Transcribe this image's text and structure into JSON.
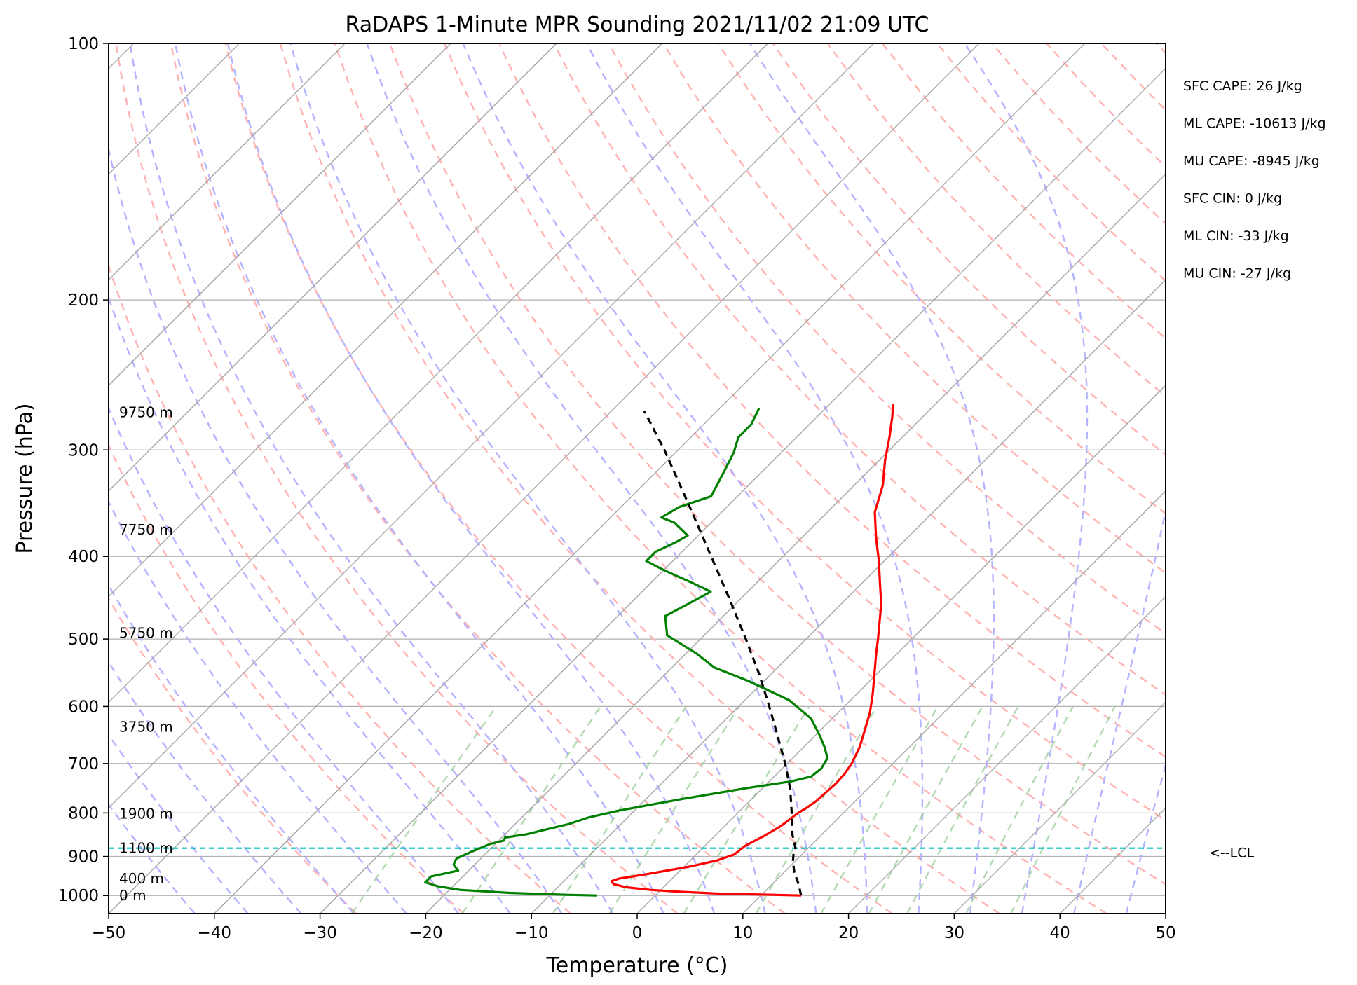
{
  "chart_data": {
    "type": "line",
    "title": "RaDAPS 1-Minute MPR Sounding 2021/11/02 21:09 UTC",
    "xlabel": "Temperature (°C)",
    "ylabel": "Pressure (hPa)",
    "xlim": [
      -50,
      50
    ],
    "ylim": [
      1050,
      100
    ],
    "y_scale": "log",
    "skew": "skew-T",
    "grid": true,
    "x_ticks": [
      -50,
      -40,
      -30,
      -20,
      -10,
      0,
      10,
      20,
      30,
      40,
      50
    ],
    "x_tick_labels": [
      "−50",
      "−40",
      "−30",
      "−20",
      "−10",
      "0",
      "10",
      "20",
      "30",
      "40",
      "50"
    ],
    "y_ticks": [
      100,
      200,
      300,
      400,
      500,
      600,
      700,
      800,
      900,
      1000
    ],
    "y_tick_labels": [
      "100",
      "200",
      "300",
      "400",
      "500",
      "600",
      "700",
      "800",
      "900",
      "1000"
    ],
    "series": [
      {
        "kind": "temperature",
        "color": "#ff0000",
        "points": [
          [
            1000,
            13.8
          ],
          [
            998,
            11.0
          ],
          [
            995,
            6.0
          ],
          [
            990,
            2.0
          ],
          [
            985,
            -1.0
          ],
          [
            978,
            -3.5
          ],
          [
            970,
            -5.0
          ],
          [
            962,
            -5.5
          ],
          [
            955,
            -5.0
          ],
          [
            945,
            -3.0
          ],
          [
            925,
            0.5
          ],
          [
            910,
            2.5
          ],
          [
            895,
            3.6
          ],
          [
            875,
            3.8
          ],
          [
            850,
            4.7
          ],
          [
            830,
            5.3
          ],
          [
            800,
            5.7
          ],
          [
            790,
            6.0
          ],
          [
            775,
            6.3
          ],
          [
            755,
            6.4
          ],
          [
            740,
            6.5
          ],
          [
            720,
            6.4
          ],
          [
            700,
            6.1
          ],
          [
            670,
            5.3
          ],
          [
            640,
            4.2
          ],
          [
            610,
            3.0
          ],
          [
            580,
            1.5
          ],
          [
            550,
            -0.2
          ],
          [
            520,
            -2.0
          ],
          [
            500,
            -3.2
          ],
          [
            480,
            -4.5
          ],
          [
            455,
            -6.2
          ],
          [
            430,
            -8.3
          ],
          [
            405,
            -10.5
          ],
          [
            380,
            -13.0
          ],
          [
            355,
            -15.5
          ],
          [
            330,
            -17.3
          ],
          [
            308,
            -19.5
          ],
          [
            290,
            -21.2
          ],
          [
            275,
            -22.8
          ],
          [
            265,
            -24.0
          ]
        ]
      },
      {
        "kind": "dewpoint",
        "color": "#008000",
        "points": [
          [
            1000,
            -5.5
          ],
          [
            998,
            -8.5
          ],
          [
            993,
            -14.0
          ],
          [
            985,
            -19.0
          ],
          [
            975,
            -21.5
          ],
          [
            965,
            -23.0
          ],
          [
            950,
            -23.0
          ],
          [
            935,
            -21.0
          ],
          [
            920,
            -22.0
          ],
          [
            905,
            -22.3
          ],
          [
            888,
            -21.5
          ],
          [
            870,
            -20.5
          ],
          [
            862,
            -19.5
          ],
          [
            855,
            -19.7
          ],
          [
            848,
            -18.0
          ],
          [
            840,
            -17.0
          ],
          [
            825,
            -15.0
          ],
          [
            810,
            -13.7
          ],
          [
            795,
            -11.5
          ],
          [
            770,
            -6.5
          ],
          [
            748,
            -1.5
          ],
          [
            735,
            2.0
          ],
          [
            725,
            3.5
          ],
          [
            710,
            3.7
          ],
          [
            690,
            3.3
          ],
          [
            670,
            2.0
          ],
          [
            650,
            0.5
          ],
          [
            620,
            -2.0
          ],
          [
            590,
            -5.8
          ],
          [
            560,
            -11.5
          ],
          [
            540,
            -16.0
          ],
          [
            520,
            -19.0
          ],
          [
            495,
            -23.5
          ],
          [
            470,
            -25.5
          ],
          [
            455,
            -24.5
          ],
          [
            440,
            -23.5
          ],
          [
            430,
            -26.0
          ],
          [
            415,
            -30.0
          ],
          [
            405,
            -32.5
          ],
          [
            395,
            -32.5
          ],
          [
            385,
            -31.5
          ],
          [
            378,
            -31.0
          ],
          [
            365,
            -33.5
          ],
          [
            360,
            -35.2
          ],
          [
            350,
            -34.5
          ],
          [
            340,
            -32.5
          ],
          [
            320,
            -33.5
          ],
          [
            302,
            -34.5
          ],
          [
            290,
            -35.5
          ],
          [
            280,
            -35.5
          ],
          [
            268,
            -36.3
          ]
        ]
      },
      {
        "kind": "parcel",
        "color": "#000000",
        "style": "dashed",
        "points": [
          [
            1000,
            13.8
          ],
          [
            970,
            12.5
          ],
          [
            940,
            11.0
          ],
          [
            912,
            9.8
          ],
          [
            895,
            9.2
          ],
          [
            880,
            8.8
          ],
          [
            850,
            7.3
          ],
          [
            800,
            5.1
          ],
          [
            750,
            2.7
          ],
          [
            700,
            -0.2
          ],
          [
            650,
            -3.5
          ],
          [
            600,
            -7.1
          ],
          [
            550,
            -11.1
          ],
          [
            500,
            -15.7
          ],
          [
            450,
            -20.9
          ],
          [
            400,
            -26.8
          ],
          [
            350,
            -33.5
          ],
          [
            300,
            -41.3
          ],
          [
            270,
            -46.9
          ]
        ]
      }
    ],
    "lcl": {
      "pressure": 880,
      "label": "<--LCL",
      "color": "#00bfbf"
    },
    "height_labels": [
      {
        "pressure": 1000,
        "text": "0 m"
      },
      {
        "pressure": 955,
        "text": "400 m"
      },
      {
        "pressure": 880,
        "text": "1100 m"
      },
      {
        "pressure": 802,
        "text": "1900 m"
      },
      {
        "pressure": 634,
        "text": "3750 m"
      },
      {
        "pressure": 492,
        "text": "5750 m"
      },
      {
        "pressure": 372,
        "text": "7750 m"
      },
      {
        "pressure": 271,
        "text": "9750 m"
      }
    ],
    "annotations": [
      "SFC CAPE: 26 J/kg",
      "ML CAPE: -10613 J/kg",
      "MU CAPE: -8945 J/kg",
      "SFC CIN: 0 J/kg",
      "ML CIN: -33 J/kg",
      "MU CIN: -27 J/kg"
    ],
    "colors": {
      "isotherm": "#a6a6a6",
      "dry_adiabat": "#ffb3b3",
      "moist_adiabat": "#b3b3ff",
      "mixing_ratio": "#99cc99",
      "grid": "#b0b0b0"
    }
  }
}
